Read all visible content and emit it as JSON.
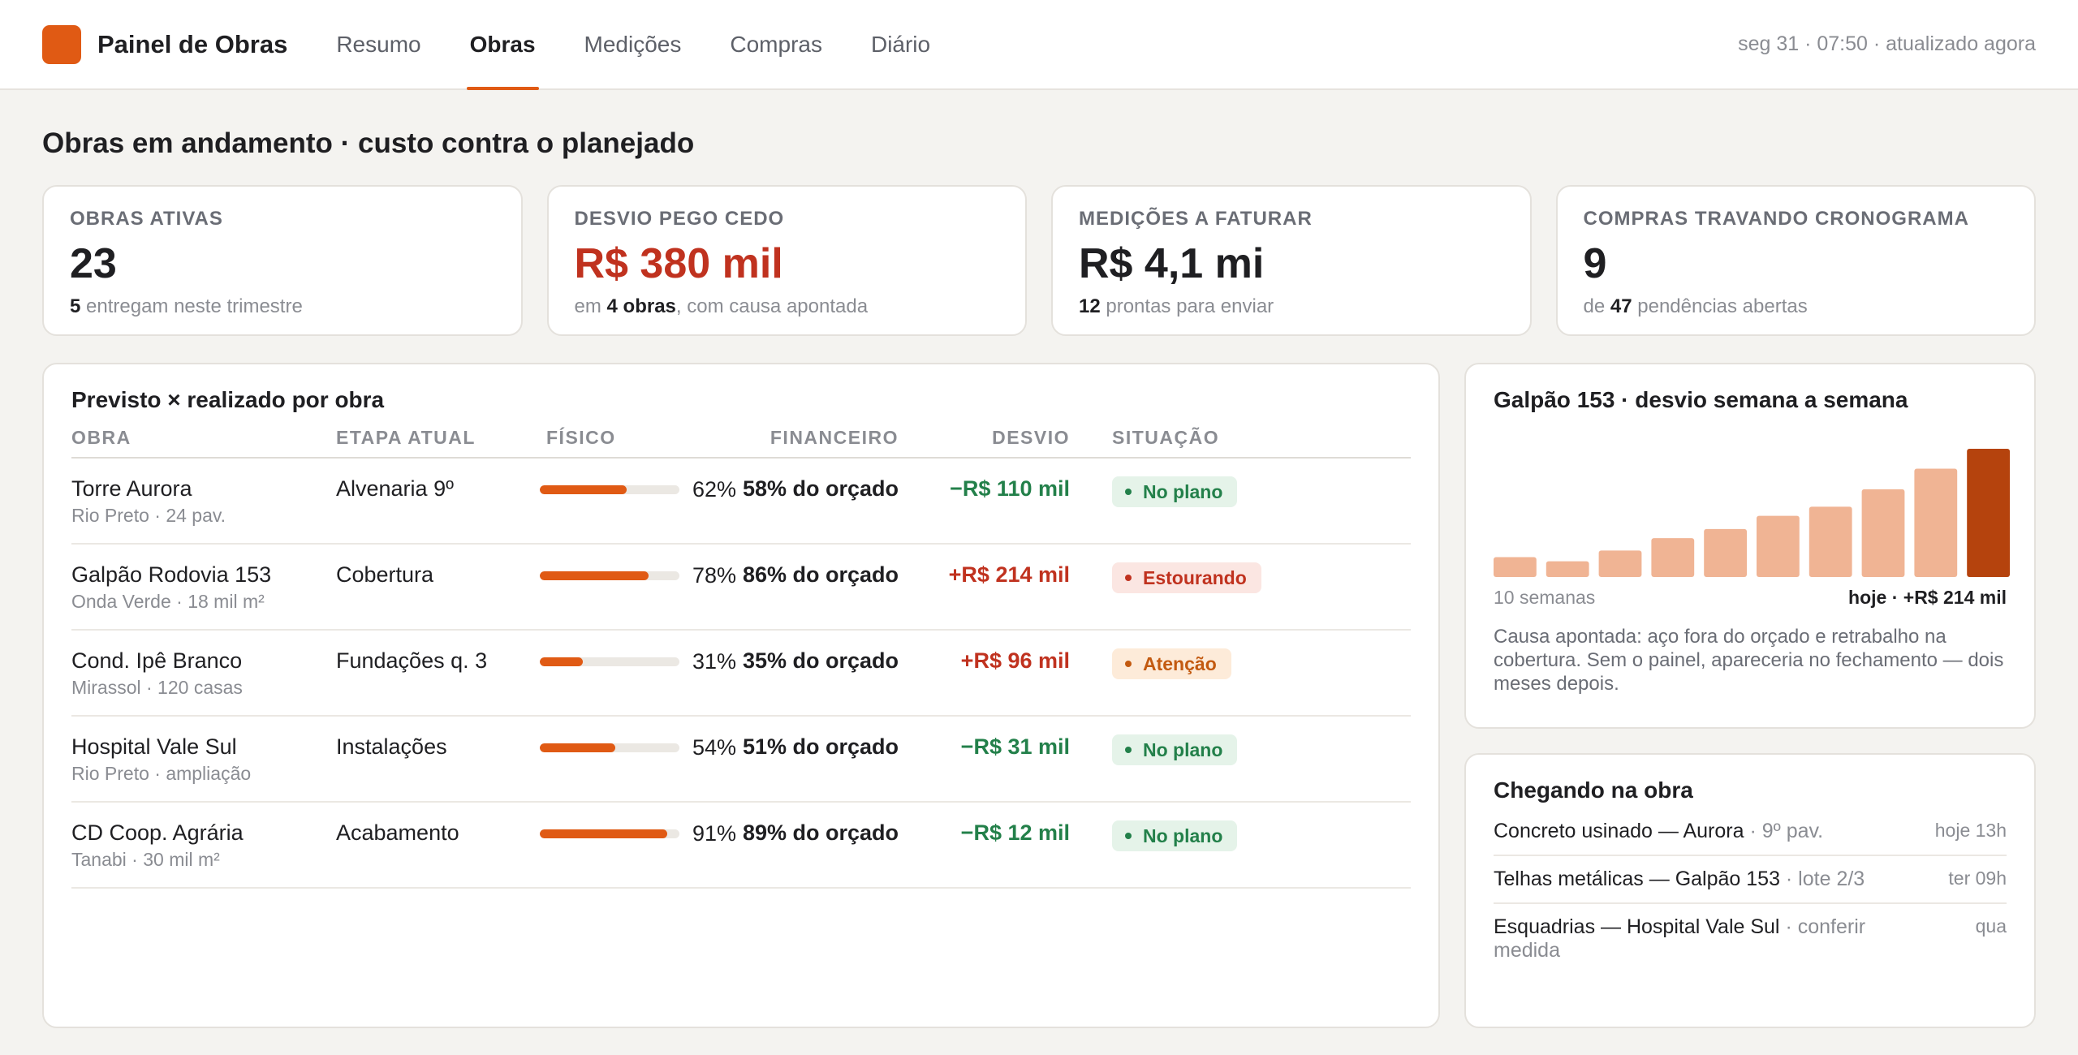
{
  "app": {
    "title": "Painel de Obras",
    "status": "seg 31 · 07:50 · atualizado agora",
    "accent": "#e05a14"
  },
  "nav": {
    "tabs": [
      {
        "label": "Resumo",
        "active": false
      },
      {
        "label": "Obras",
        "active": true
      },
      {
        "label": "Medições",
        "active": false
      },
      {
        "label": "Compras",
        "active": false
      },
      {
        "label": "Diário",
        "active": false
      }
    ]
  },
  "page": {
    "title": "Obras em andamento · custo contra o planejado"
  },
  "kpis": [
    {
      "label": "OBRAS ATIVAS",
      "value": "23",
      "sub_strong": "5",
      "sub_rest": " entregam neste trimestre",
      "sub_pre": ""
    },
    {
      "label": "DESVIO PEGO CEDO",
      "value": "R$ 380 mil",
      "sub_pre": "em ",
      "sub_strong": "4 obras",
      "sub_rest": ", com causa apontada"
    },
    {
      "label": "MEDIÇÕES A FATURAR",
      "value": "R$ 4,1 mi",
      "sub_pre": "",
      "sub_strong": "12",
      "sub_rest": " prontas para enviar"
    },
    {
      "label": "COMPRAS TRAVANDO CRONOGRAMA",
      "value": "9",
      "sub_pre": "de ",
      "sub_strong": "47",
      "sub_rest": " pendências abertas"
    }
  ],
  "table": {
    "title": "Previsto × realizado por obra",
    "headers": {
      "obra": "OBRA",
      "etapa": "ETAPA ATUAL",
      "fisico": "FÍSICO",
      "financeiro": "FINANCEIRO",
      "desvio": "DESVIO",
      "situacao": "SITUAÇÃO"
    },
    "rows": [
      {
        "name": "Torre Aurora",
        "sub": "Rio Preto · 24 pav.",
        "etapa": "Alvenaria 9º",
        "fisico": 0.62,
        "fisico_label": "62%",
        "financeiro": "58% do orçado",
        "desvio": "−R$ 110 mil",
        "desvio_tone": "good",
        "situacao": "No plano",
        "situacao_tone": "ok"
      },
      {
        "name": "Galpão Rodovia 153",
        "sub": "Onda Verde · 18 mil m²",
        "etapa": "Cobertura",
        "fisico": 0.78,
        "fisico_label": "78%",
        "financeiro": "86% do orçado",
        "desvio": "+R$ 214 mil",
        "desvio_tone": "bad",
        "situacao": "Estourando",
        "situacao_tone": "over"
      },
      {
        "name": "Cond. Ipê Branco",
        "sub": "Mirassol · 120 casas",
        "etapa": "Fundações q. 3",
        "fisico": 0.31,
        "fisico_label": "31%",
        "financeiro": "35% do orçado",
        "desvio": "+R$ 96 mil",
        "desvio_tone": "bad",
        "situacao": "Atenção",
        "situacao_tone": "warn"
      },
      {
        "name": "Hospital Vale Sul",
        "sub": "Rio Preto · ampliação",
        "etapa": "Instalações",
        "fisico": 0.54,
        "fisico_label": "54%",
        "financeiro": "51% do orçado",
        "desvio": "−R$ 31 mil",
        "desvio_tone": "good",
        "situacao": "No plano",
        "situacao_tone": "ok"
      },
      {
        "name": "CD Coop. Agrária",
        "sub": "Tanabi · 30 mil m²",
        "etapa": "Acabamento",
        "fisico": 0.91,
        "fisico_label": "91%",
        "financeiro": "89% do orçado",
        "desvio": "−R$ 12 mil",
        "desvio_tone": "good",
        "situacao": "No plano",
        "situacao_tone": "ok"
      }
    ]
  },
  "trend": {
    "title": "Galpão 153 · desvio semana a semana",
    "foot_left": "10 semanas",
    "foot_right": "hoje · +R$ 214 mil",
    "note": "Causa apontada: aço fora do orçado e retrabalho na cobertura. Sem o painel, apareceria no fechamento — dois meses depois.",
    "bar_color": "#f0b494",
    "highlight_color": "#b5430d"
  },
  "chart_data": {
    "type": "bar",
    "title": "Galpão 153 · desvio semana a semana",
    "categories": [
      "",
      "",
      "",
      "",
      "",
      "",
      "",
      "",
      "",
      ""
    ],
    "values": [
      24,
      19,
      32,
      47,
      58,
      74,
      85,
      106,
      131,
      155
    ],
    "highlight_index": 9,
    "xlabel": "",
    "ylabel": "",
    "grid": false
  },
  "arrivals": {
    "title": "Chegando na obra",
    "items": [
      {
        "text": "Concreto usinado — Aurora",
        "muted": " · 9º pav.",
        "when": "hoje 13h"
      },
      {
        "text": "Telhas metálicas — Galpão 153",
        "muted": " · lote 2/3",
        "when": "ter 09h"
      },
      {
        "text": "Esquadrias — Hospital Vale Sul",
        "muted": " · conferir medida",
        "when": "qua"
      }
    ]
  }
}
